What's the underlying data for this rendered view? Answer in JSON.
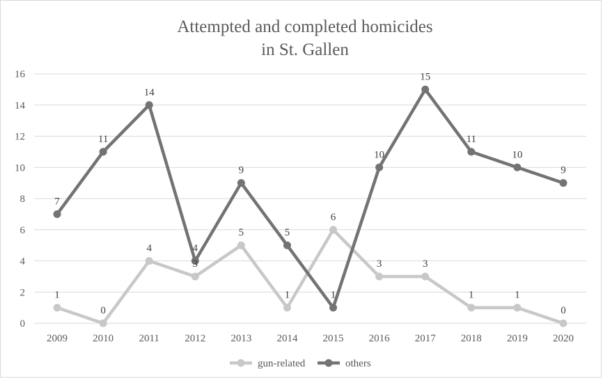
{
  "chart_data": {
    "type": "line",
    "title_lines": [
      "Attempted and completed homicides",
      "in St. Gallen"
    ],
    "xlabel": "",
    "ylabel": "",
    "categories": [
      "2009",
      "2010",
      "2011",
      "2012",
      "2013",
      "2014",
      "2015",
      "2016",
      "2017",
      "2018",
      "2019",
      "2020"
    ],
    "ylim": [
      0,
      16
    ],
    "yticks": [
      "0",
      "2",
      "4",
      "6",
      "8",
      "10",
      "12",
      "14",
      "16"
    ],
    "grid": true,
    "legend_position": "bottom",
    "series": [
      {
        "name": "gun-related",
        "color": "#c8c8c8",
        "values": [
          1,
          0,
          4,
          3,
          5,
          1,
          6,
          3,
          3,
          1,
          1,
          0
        ]
      },
      {
        "name": "others",
        "color": "#737373",
        "values": [
          7,
          11,
          14,
          4,
          9,
          5,
          1,
          10,
          15,
          11,
          10,
          9
        ]
      }
    ]
  }
}
